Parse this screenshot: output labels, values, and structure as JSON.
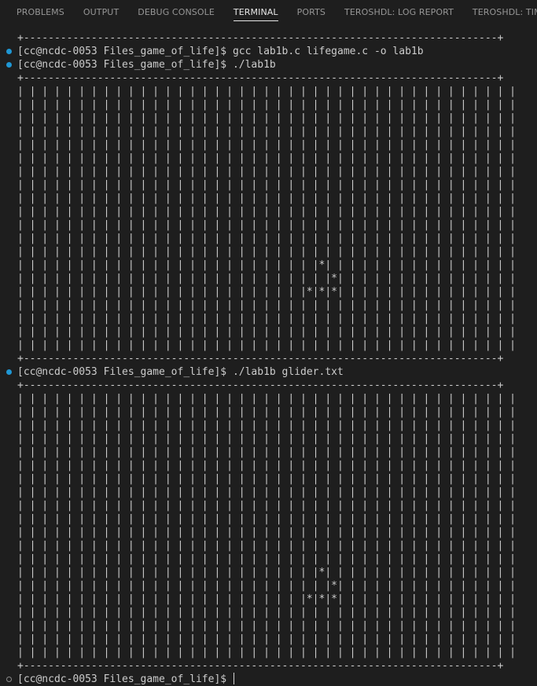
{
  "panel": {
    "tabs": [
      {
        "label": "PROBLEMS"
      },
      {
        "label": "OUTPUT"
      },
      {
        "label": "DEBUG CONSOLE"
      },
      {
        "label": "TERMINAL"
      },
      {
        "label": "PORTS"
      },
      {
        "label": "TEROSHDL: LOG REPORT"
      },
      {
        "label": "TEROSHDL: TIMING"
      }
    ],
    "active_tab": "TERMINAL"
  },
  "colors": {
    "background": "#1e1e1e",
    "text": "#cccccc",
    "success_dot": "#1f97d4",
    "pending_dot": "#8a8a8a"
  },
  "terminal": {
    "border_line": "+-----------------------------------------------------------------------------+",
    "grid_line": "| | | | | | | | | | | | | | | | | | | | | | | | | | | | | | | | | | | | | | | | |",
    "glider_rows": [
      "| | | | | | | | | | | | | | | | | | | | | | | | |*| | | | | | | | | | | | | | | |",
      "| | | | | | | | | | | | | | | | | | | | | | | | | |*| | | | | | | | | | | | | | |",
      "| | | | | | | | | | | | | | | | | | | | | | | |*|*|*| | | | | | | | | | | | | | |"
    ],
    "prompt": "[cc@ncdc-0053 Files_game_of_life]$",
    "commands": [
      "gcc lab1b.c lifegame.c -o lab1b",
      "./lab1b",
      "./lab1b glider.txt"
    ]
  }
}
